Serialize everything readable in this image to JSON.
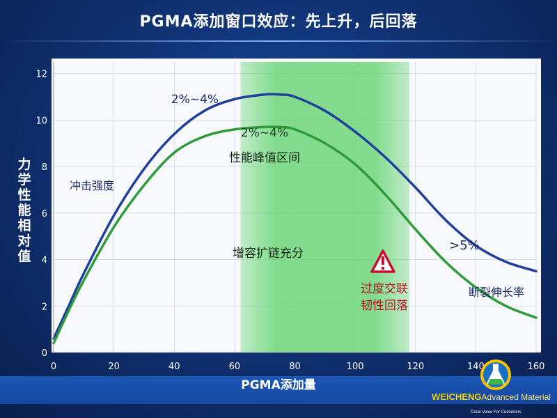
{
  "title": "PGMA添加窗口效应：先上升，后回落",
  "chart_data": {
    "type": "line",
    "xlabel": "PGMA添加量",
    "ylabel": "力学性能相对值",
    "xlim": [
      0,
      160
    ],
    "ylim": [
      0,
      12.5
    ],
    "x_ticks": [
      0,
      20,
      40,
      60,
      80,
      100,
      120,
      140,
      160
    ],
    "y_ticks": [
      0,
      2,
      4,
      6,
      8,
      10,
      12
    ],
    "highlight_band": {
      "x_from": 62,
      "x_to": 118,
      "color": "#5cd36a"
    },
    "series": [
      {
        "name": "冲击强度",
        "color": "#1f3f9a",
        "x": [
          0,
          5,
          10,
          20,
          30,
          40,
          50,
          60,
          70,
          75,
          80,
          90,
          100,
          110,
          120,
          130,
          140,
          150,
          160
        ],
        "y": [
          0.6,
          2.0,
          3.4,
          5.9,
          7.9,
          9.4,
          10.4,
          10.9,
          11.1,
          11.1,
          11.0,
          10.4,
          9.5,
          8.4,
          7.1,
          5.7,
          4.6,
          3.9,
          3.5
        ]
      },
      {
        "name": "断裂伸长率",
        "color": "#2e9a3a",
        "x": [
          0,
          5,
          10,
          20,
          30,
          40,
          50,
          60,
          70,
          75,
          80,
          90,
          100,
          110,
          120,
          130,
          140,
          150,
          160
        ],
        "y": [
          0.4,
          1.8,
          3.1,
          5.4,
          7.2,
          8.6,
          9.3,
          9.6,
          9.7,
          9.7,
          9.6,
          9.0,
          8.1,
          6.8,
          5.3,
          3.9,
          2.8,
          2.0,
          1.5
        ]
      }
    ],
    "annotations": {
      "peak_blue": "2%~4%",
      "peak_green": "2%~4%",
      "band_label": "性能峰值区间",
      "band_mechanism": "增容扩链充分",
      "blue_series_label": "冲击强度",
      "green_series_label": "断裂伸长率",
      "over_label": ">5%",
      "warning_line1": "过度交联",
      "warning_line2": "韧性回落"
    },
    "colors": {
      "warning": "#c8102e"
    }
  },
  "brand": {
    "part1": "WEI",
    "part2": "CHENG",
    "part3": "Advanced Material",
    "tagline": "Creat Value For Customers"
  }
}
